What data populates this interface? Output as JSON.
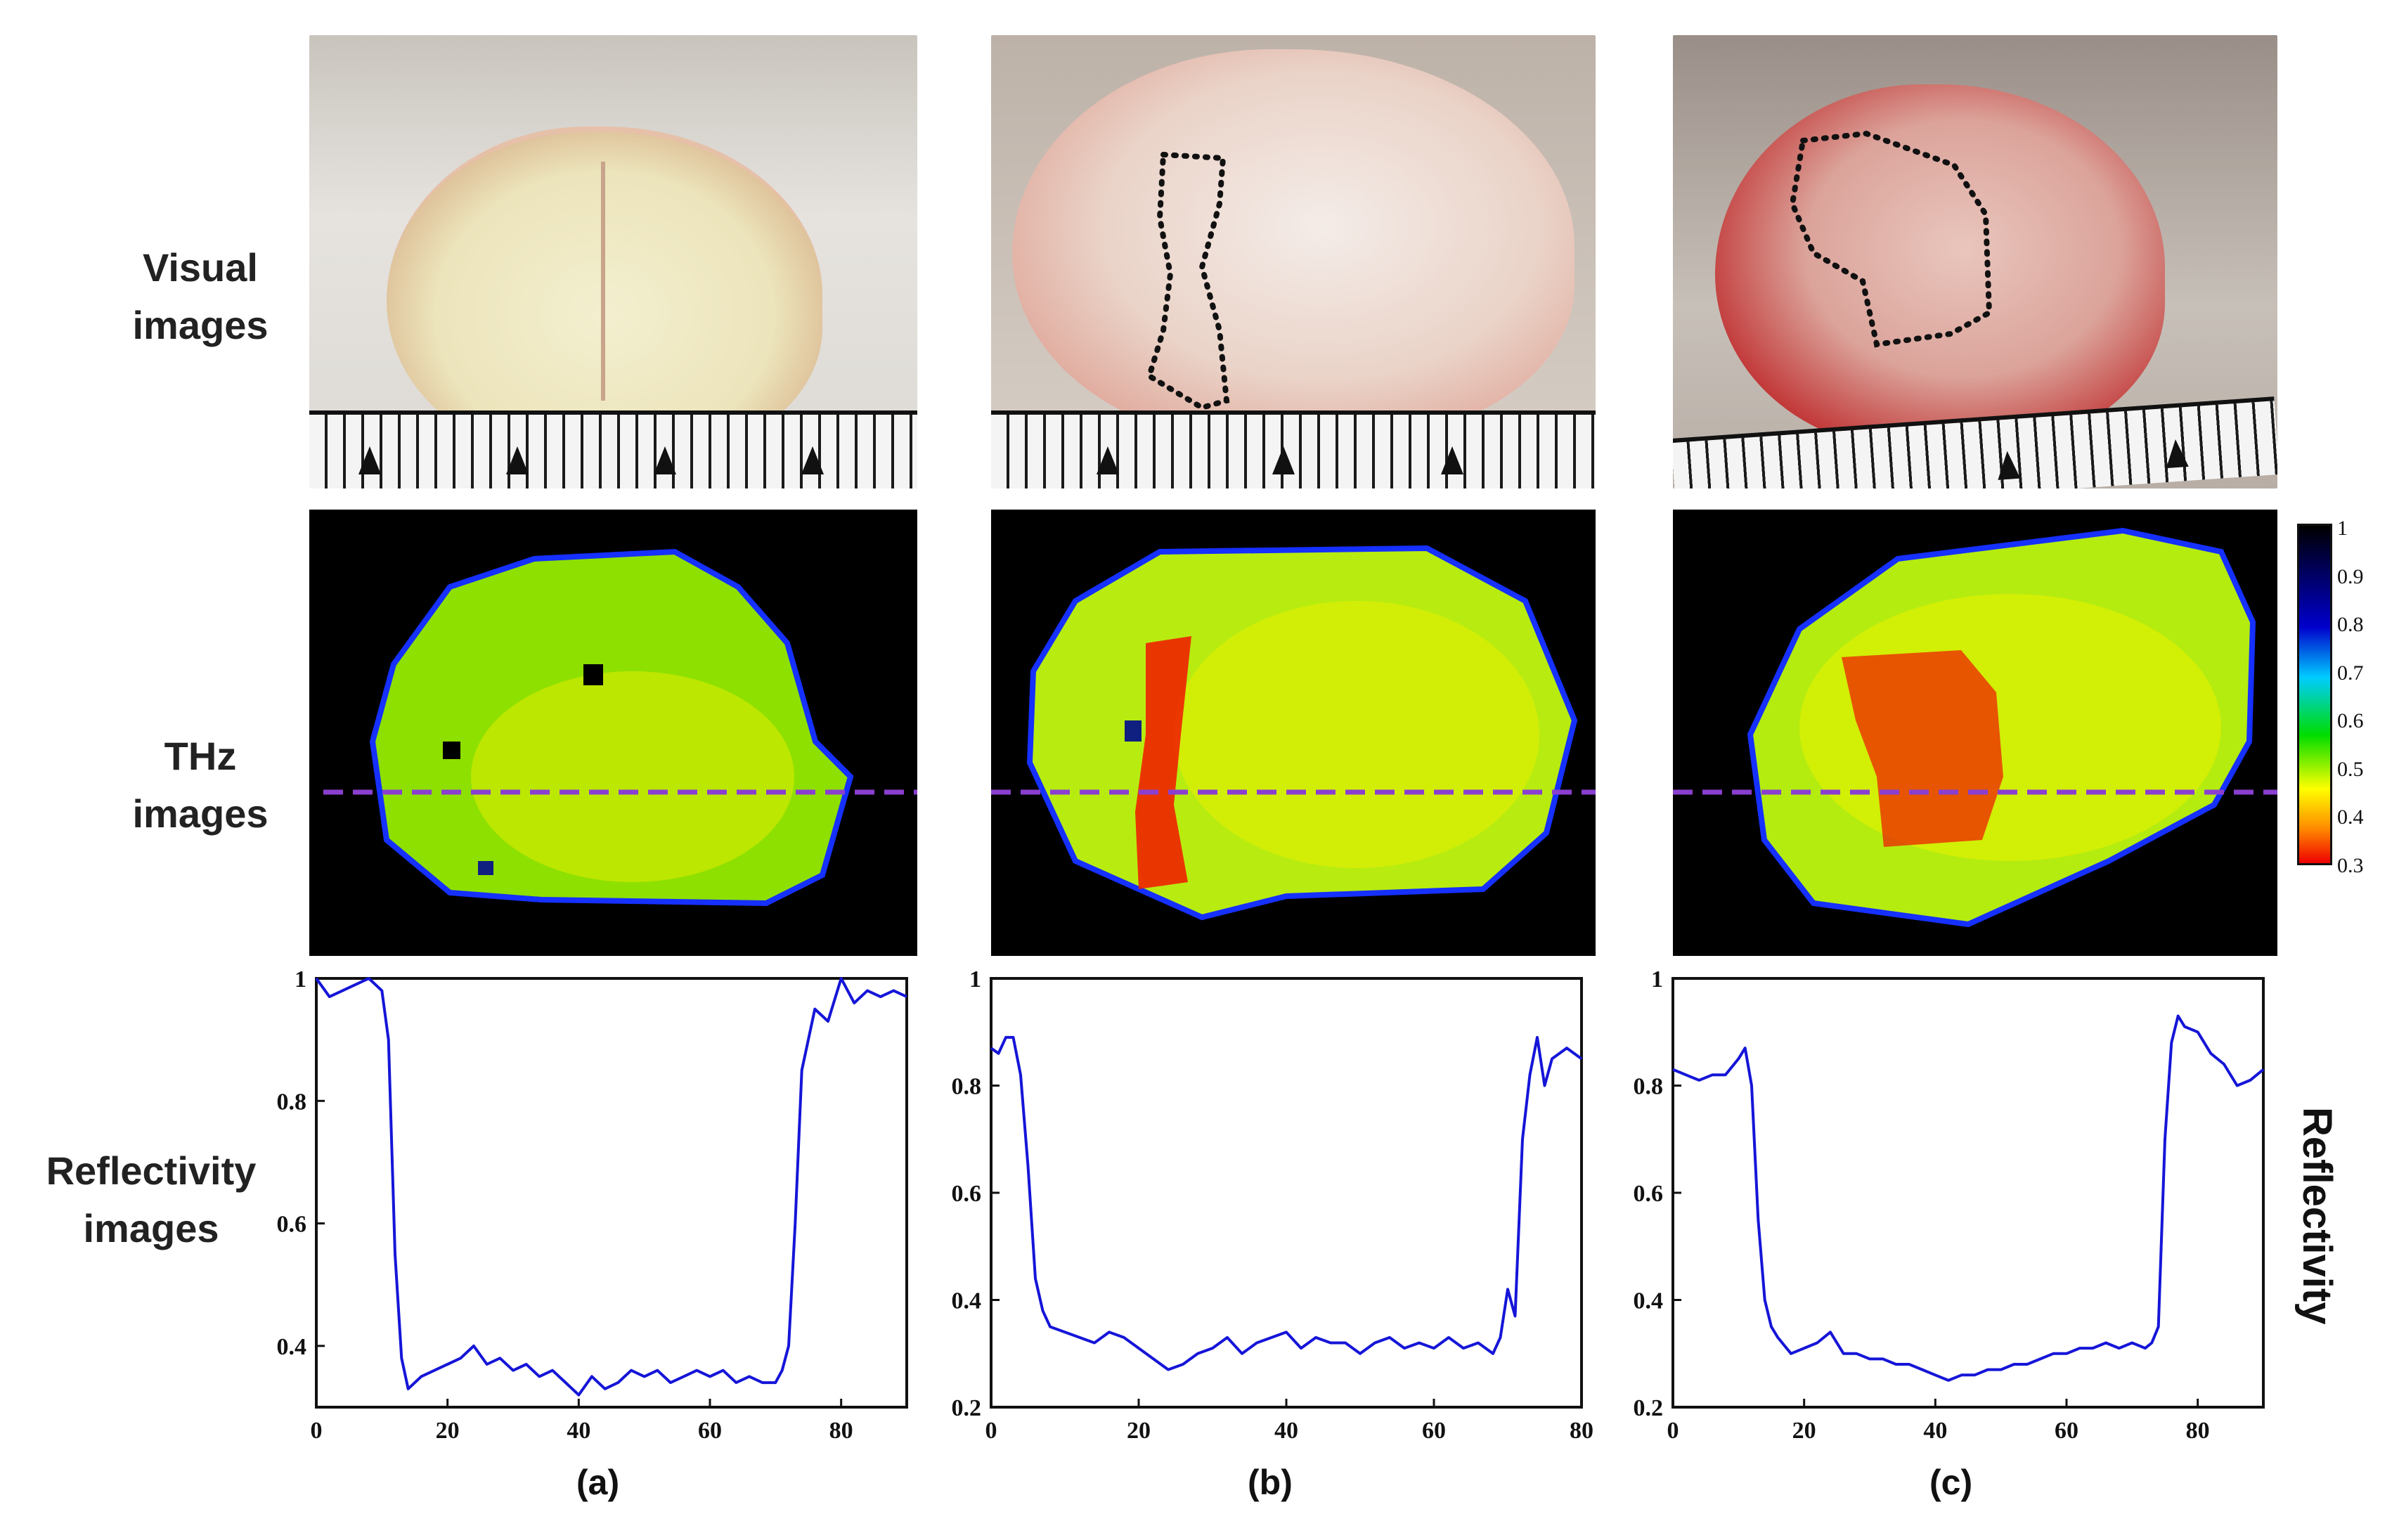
{
  "row_labels": {
    "visual": [
      "Visual",
      "images"
    ],
    "thz": [
      "THz",
      "images"
    ],
    "reflectivity": [
      "Reflectivity",
      "images"
    ]
  },
  "colorbar": {
    "ticks": [
      "1",
      "0.9",
      "0.8",
      "0.7",
      "0.6",
      "0.5",
      "0.4",
      "0.3"
    ],
    "colors": [
      "#000000",
      "#0000cc",
      "#00ccff",
      "#00dd00",
      "#ffff00",
      "#ff8800",
      "#ee0000"
    ]
  },
  "side_label": "Reflectivity",
  "panel_letters": [
    "(a)",
    "(b)",
    "(c)"
  ],
  "colors": {
    "line": "#1515d8",
    "dashed": "#8a3fd0"
  },
  "chart_data": [
    {
      "type": "line",
      "panel": "(a)",
      "xlim": [
        0,
        90
      ],
      "ylim": [
        0.3,
        1
      ],
      "xticks": [
        "0",
        "20",
        "40",
        "60",
        "80"
      ],
      "yticks": [
        "0.4",
        "0.6",
        "0.8",
        "1"
      ],
      "x": [
        0,
        2,
        4,
        6,
        8,
        10,
        11,
        12,
        13,
        14,
        16,
        18,
        20,
        22,
        24,
        26,
        28,
        30,
        32,
        34,
        36,
        38,
        40,
        42,
        44,
        46,
        48,
        50,
        52,
        54,
        56,
        58,
        60,
        62,
        64,
        66,
        68,
        70,
        71,
        72,
        73,
        74,
        76,
        78,
        80,
        82,
        84,
        86,
        88,
        90
      ],
      "y": [
        1.0,
        0.97,
        0.98,
        0.99,
        1.0,
        0.98,
        0.9,
        0.55,
        0.38,
        0.33,
        0.35,
        0.36,
        0.37,
        0.38,
        0.4,
        0.37,
        0.38,
        0.36,
        0.37,
        0.35,
        0.36,
        0.34,
        0.32,
        0.35,
        0.33,
        0.34,
        0.36,
        0.35,
        0.36,
        0.34,
        0.35,
        0.36,
        0.35,
        0.36,
        0.34,
        0.35,
        0.34,
        0.34,
        0.36,
        0.4,
        0.6,
        0.85,
        0.95,
        0.93,
        1.0,
        0.96,
        0.98,
        0.97,
        0.98,
        0.97
      ]
    },
    {
      "type": "line",
      "panel": "(b)",
      "xlim": [
        0,
        80
      ],
      "ylim": [
        0.2,
        1
      ],
      "xticks": [
        "0",
        "20",
        "40",
        "60",
        "80"
      ],
      "yticks": [
        "0.2",
        "0.4",
        "0.6",
        "0.8",
        "1"
      ],
      "x": [
        0,
        1,
        2,
        3,
        4,
        5,
        6,
        7,
        8,
        10,
        12,
        14,
        16,
        18,
        20,
        22,
        24,
        26,
        28,
        30,
        32,
        34,
        36,
        38,
        40,
        42,
        44,
        46,
        48,
        50,
        52,
        54,
        56,
        58,
        60,
        62,
        64,
        66,
        68,
        69,
        70,
        71,
        72,
        73,
        74,
        75,
        76,
        78,
        80
      ],
      "y": [
        0.87,
        0.86,
        0.89,
        0.89,
        0.82,
        0.65,
        0.44,
        0.38,
        0.35,
        0.34,
        0.33,
        0.32,
        0.34,
        0.33,
        0.31,
        0.29,
        0.27,
        0.28,
        0.3,
        0.31,
        0.33,
        0.3,
        0.32,
        0.33,
        0.34,
        0.31,
        0.33,
        0.32,
        0.32,
        0.3,
        0.32,
        0.33,
        0.31,
        0.32,
        0.31,
        0.33,
        0.31,
        0.32,
        0.3,
        0.33,
        0.42,
        0.37,
        0.7,
        0.82,
        0.89,
        0.8,
        0.85,
        0.87,
        0.85
      ]
    },
    {
      "type": "line",
      "panel": "(c)",
      "xlim": [
        0,
        90
      ],
      "ylim": [
        0.2,
        1
      ],
      "xticks": [
        "0",
        "20",
        "40",
        "60",
        "80"
      ],
      "yticks": [
        "0.2",
        "0.4",
        "0.6",
        "0.8",
        "1"
      ],
      "x": [
        0,
        2,
        4,
        6,
        8,
        10,
        11,
        12,
        13,
        14,
        15,
        16,
        18,
        20,
        22,
        24,
        26,
        28,
        30,
        32,
        34,
        36,
        38,
        40,
        42,
        44,
        46,
        48,
        50,
        52,
        54,
        56,
        58,
        60,
        62,
        64,
        66,
        68,
        70,
        72,
        73,
        74,
        75,
        76,
        77,
        78,
        80,
        82,
        84,
        86,
        88,
        90
      ],
      "y": [
        0.83,
        0.82,
        0.81,
        0.82,
        0.82,
        0.85,
        0.87,
        0.8,
        0.55,
        0.4,
        0.35,
        0.33,
        0.3,
        0.31,
        0.32,
        0.34,
        0.3,
        0.3,
        0.29,
        0.29,
        0.28,
        0.28,
        0.27,
        0.26,
        0.25,
        0.26,
        0.26,
        0.27,
        0.27,
        0.28,
        0.28,
        0.29,
        0.3,
        0.3,
        0.31,
        0.31,
        0.32,
        0.31,
        0.32,
        0.31,
        0.32,
        0.35,
        0.7,
        0.88,
        0.93,
        0.91,
        0.9,
        0.86,
        0.84,
        0.8,
        0.81,
        0.83
      ]
    }
  ]
}
